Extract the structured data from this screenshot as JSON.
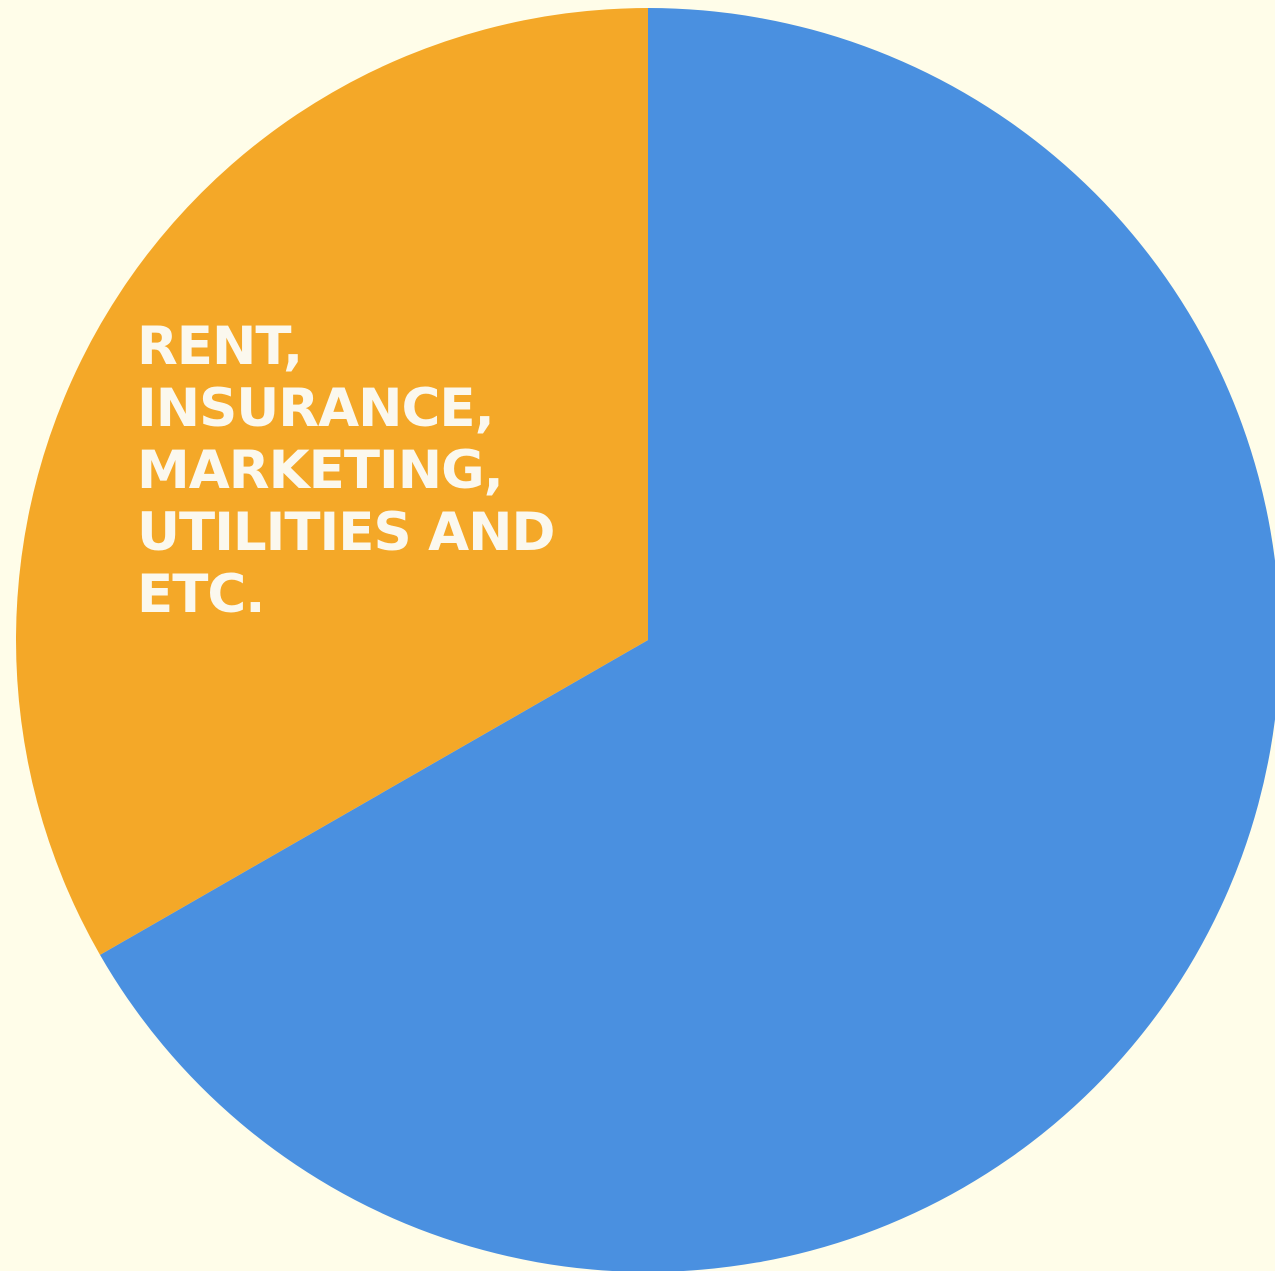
{
  "chart_data": {
    "type": "pie",
    "title": "",
    "start_angle_deg": 0,
    "direction": "clockwise",
    "slices": [
      {
        "value": 66.7,
        "color": "#4a90e0",
        "label_lines": []
      },
      {
        "value": 33.3,
        "color": "#f4a828",
        "label_lines": [
          "RENT,",
          "INSURANCE,",
          "MARKETING,",
          "UTILITIES AND",
          "ETC."
        ]
      }
    ]
  }
}
